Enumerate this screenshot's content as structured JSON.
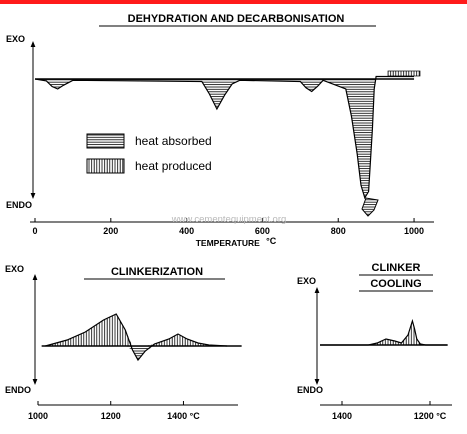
{
  "colors": {
    "top_bar": "#ff1a1a",
    "ink": "#000000",
    "watermark": "#b9b9b9"
  },
  "watermark": "www.cementequipment.org",
  "chart_data": [
    {
      "type": "area",
      "title": "DEHYDRATION AND DECARBONISATION",
      "ylabel_top": "EXO",
      "ylabel_bottom": "ENDO",
      "xlabel": "TEMPERATURE",
      "xunit": "°C",
      "xlim": [
        0,
        1050
      ],
      "ylim": [
        -110,
        10
      ],
      "x_ticks": [
        0,
        200,
        400,
        600,
        800,
        1000
      ],
      "x_tick_labels": [
        "0",
        "200",
        "400",
        "600",
        "800",
        "1000"
      ],
      "legend": [
        {
          "label": "heat absorbed",
          "pattern": "horizontal-hatch"
        },
        {
          "label": "heat produced",
          "pattern": "vertical-hatch"
        }
      ],
      "legend_position": "left",
      "series": [
        {
          "x": [
            0,
            30,
            45,
            60,
            75,
            100,
            440,
            460,
            480,
            500,
            520,
            540,
            700,
            715,
            730,
            745,
            760,
            820,
            835,
            850,
            860,
            870,
            880,
            890,
            895,
            900,
            920,
            1000
          ],
          "y": [
            0,
            -1.5,
            -6,
            -8,
            -5,
            -1,
            -2,
            -12,
            -24,
            -13,
            -4,
            -1,
            -2,
            -7,
            -10,
            -6,
            -1,
            -8,
            -30,
            -60,
            -85,
            -95,
            -90,
            -40,
            -8,
            2,
            2,
            2
          ]
        }
      ]
    },
    {
      "type": "area",
      "title": "CLINKERIZATION",
      "ylabel_top": "EXO",
      "ylabel_bottom": "ENDO",
      "xunit": "°C",
      "xlim": [
        1000,
        1550
      ],
      "x_ticks": [
        1000,
        1200,
        1400
      ],
      "x_tick_labels": [
        "1000",
        "1200",
        "1400 °C"
      ],
      "series": [
        {
          "x": [
            1020,
            1080,
            1130,
            1180,
            1215,
            1240,
            1260,
            1275,
            1295,
            1320,
            1360,
            1385,
            1410,
            1440,
            1470,
            1520
          ],
          "y": [
            0,
            6,
            14,
            26,
            32,
            16,
            -4,
            -14,
            -5,
            2,
            7,
            12,
            7,
            3,
            1,
            0
          ]
        }
      ]
    },
    {
      "type": "area",
      "title": "CLINKER COOLING",
      "title_lines": [
        "CLINKER",
        "COOLING"
      ],
      "ylabel_top": "EXO",
      "ylabel_bottom": "ENDO",
      "xunit": "°C",
      "xlim": [
        1450,
        1150
      ],
      "x_ticks": [
        1400,
        1200
      ],
      "x_tick_labels": [
        "1400",
        "1200 °C"
      ],
      "series": [
        {
          "x": [
            1450,
            1340,
            1320,
            1300,
            1280,
            1265,
            1250,
            1240,
            1235,
            1230,
            1222,
            1210,
            1160
          ],
          "y": [
            0,
            0,
            2,
            6,
            4,
            2,
            10,
            24,
            16,
            6,
            1,
            0,
            0
          ]
        }
      ]
    }
  ]
}
